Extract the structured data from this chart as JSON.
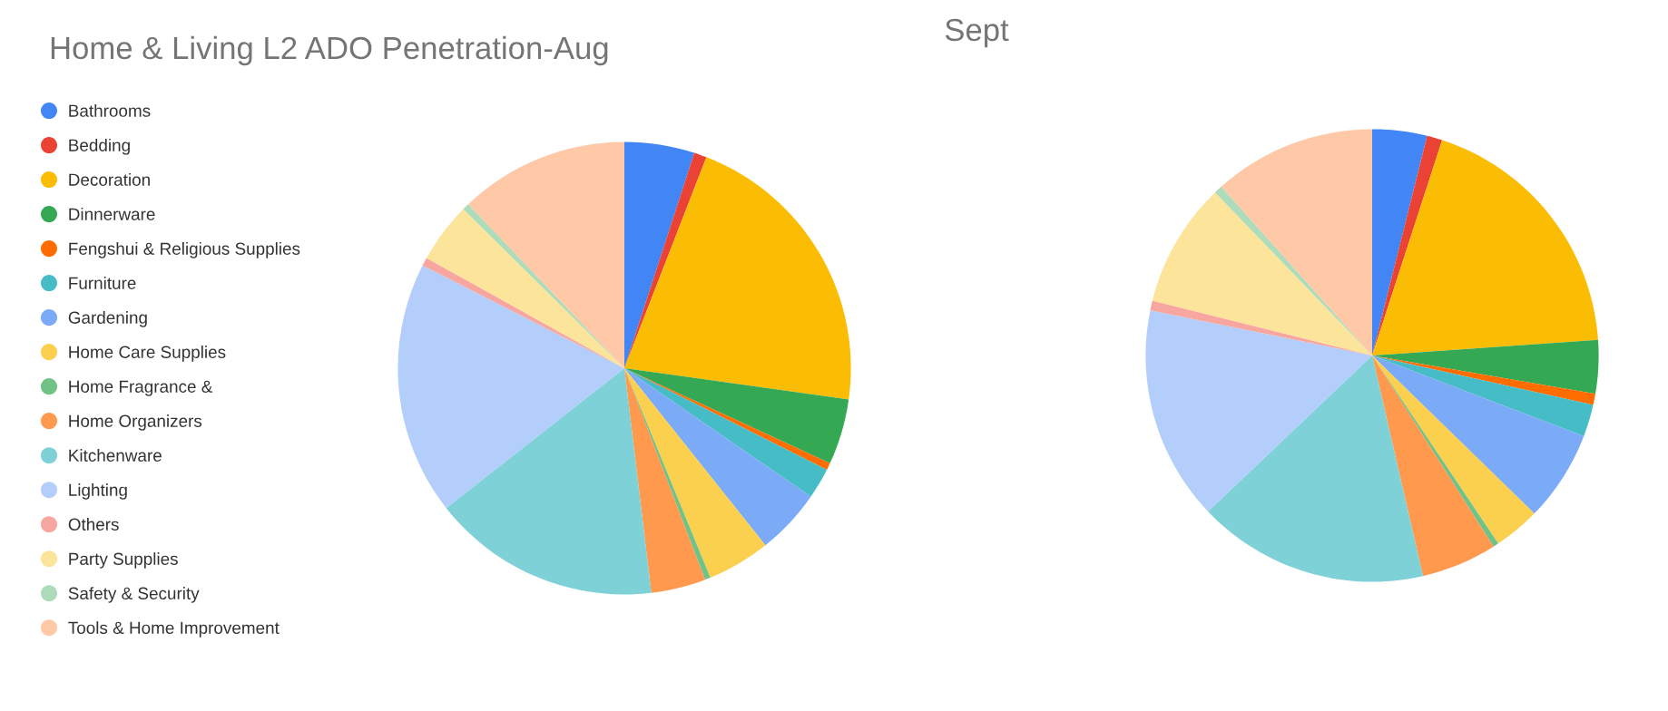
{
  "chart_data": [
    {
      "type": "pie",
      "title": "Home & Living L2 ADO Penetration-Aug",
      "legend": "left",
      "categories": [
        "Bathrooms",
        "Bedding",
        "Decoration",
        "Dinnerware",
        "Fengshui & Religious Supplies",
        "Furniture",
        "Gardening",
        "Home Care Supplies",
        "Home Fragrance &",
        "Home Organizers",
        "Kitchenware",
        "Lighting",
        "Others",
        "Party Supplies",
        "Safety & Security",
        "Tools & Home Improvement"
      ],
      "values": [
        5.0,
        0.9,
        21.3,
        4.7,
        0.5,
        2.2,
        4.7,
        4.5,
        0.4,
        3.9,
        16.3,
        18.1,
        0.6,
        4.3,
        0.5,
        12.1
      ],
      "colors": [
        "#4285f4",
        "#ea4335",
        "#fbbc04",
        "#34a853",
        "#ff6d01",
        "#46bdc6",
        "#7baaf7",
        "#fcd04f",
        "#71c287",
        "#ff994d",
        "#7ed1d7",
        "#b3cefb",
        "#f7a7a0",
        "#fde49b",
        "#aedcba",
        "#ffc8a6"
      ]
    },
    {
      "type": "pie",
      "title": "Sept",
      "categories": [
        null,
        null,
        null,
        null,
        null,
        null,
        null,
        null,
        null,
        null,
        null,
        null,
        null,
        null,
        null,
        null
      ],
      "values": [
        3.9,
        1.1,
        18.9,
        3.8,
        0.8,
        2.3,
        6.5,
        3.3,
        0.4,
        5.4,
        16.5,
        15.3,
        0.7,
        8.9,
        0.6,
        11.6
      ],
      "colors": [
        "#4285f4",
        "#ea4335",
        "#fbbc04",
        "#34a853",
        "#ff6d01",
        "#46bdc6",
        "#7baaf7",
        "#fcd04f",
        "#71c287",
        "#ff994d",
        "#7ed1d7",
        "#b3cefb",
        "#f7a7a0",
        "#fde49b",
        "#aedcba",
        "#ffc8a6"
      ]
    }
  ]
}
